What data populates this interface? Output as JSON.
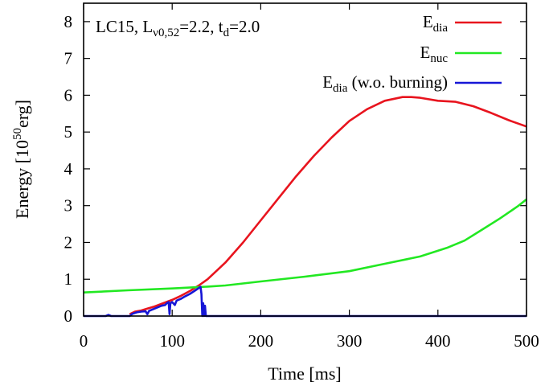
{
  "chart_data": {
    "type": "line",
    "title": "",
    "annotation": {
      "parts": [
        "LC15, L",
        "ν0,52",
        "=2.2, t",
        "d",
        "=2.0"
      ]
    },
    "xlabel": "Time [ms]",
    "ylabel": {
      "base": "Energy [10",
      "sup": "50",
      "unit": "erg]"
    },
    "xlim": [
      0,
      500
    ],
    "ylim": [
      0,
      8.5
    ],
    "xticks": [
      0,
      100,
      200,
      300,
      400,
      500
    ],
    "yticks": [
      0,
      1,
      2,
      3,
      4,
      5,
      6,
      7,
      8
    ],
    "legend_position": "top-right",
    "series": [
      {
        "name": "E_dia",
        "label_main": "E",
        "label_sub": "dia",
        "label_suffix": "",
        "color": "#e8141e",
        "points": [
          [
            52,
            0.05
          ],
          [
            58,
            0.12
          ],
          [
            65,
            0.15
          ],
          [
            72,
            0.2
          ],
          [
            80,
            0.26
          ],
          [
            90,
            0.35
          ],
          [
            100,
            0.44
          ],
          [
            110,
            0.55
          ],
          [
            120,
            0.68
          ],
          [
            130,
            0.83
          ],
          [
            140,
            1.0
          ],
          [
            160,
            1.45
          ],
          [
            180,
            2.0
          ],
          [
            200,
            2.6
          ],
          [
            220,
            3.2
          ],
          [
            240,
            3.8
          ],
          [
            260,
            4.35
          ],
          [
            280,
            4.85
          ],
          [
            300,
            5.3
          ],
          [
            320,
            5.62
          ],
          [
            340,
            5.85
          ],
          [
            360,
            5.95
          ],
          [
            370,
            5.95
          ],
          [
            380,
            5.93
          ],
          [
            400,
            5.85
          ],
          [
            420,
            5.82
          ],
          [
            440,
            5.7
          ],
          [
            460,
            5.52
          ],
          [
            480,
            5.32
          ],
          [
            500,
            5.15
          ]
        ]
      },
      {
        "name": "E_nuc",
        "label_main": "E",
        "label_sub": "nuc",
        "label_suffix": "",
        "color": "#22e822",
        "points": [
          [
            0,
            0.64
          ],
          [
            50,
            0.7
          ],
          [
            100,
            0.75
          ],
          [
            140,
            0.8
          ],
          [
            160,
            0.83
          ],
          [
            200,
            0.94
          ],
          [
            250,
            1.07
          ],
          [
            300,
            1.22
          ],
          [
            340,
            1.42
          ],
          [
            380,
            1.62
          ],
          [
            410,
            1.85
          ],
          [
            430,
            2.05
          ],
          [
            450,
            2.35
          ],
          [
            470,
            2.65
          ],
          [
            490,
            2.98
          ],
          [
            500,
            3.17
          ]
        ]
      },
      {
        "name": "E_dia (w.o. burning)",
        "label_main": "E",
        "label_sub": "dia",
        "label_suffix": " (w.o. burning)",
        "color": "#1616d6",
        "points": [
          [
            0,
            0
          ],
          [
            25,
            0
          ],
          [
            28,
            0.03
          ],
          [
            31,
            0
          ],
          [
            52,
            0
          ],
          [
            55,
            0.06
          ],
          [
            60,
            0.1
          ],
          [
            65,
            0.12
          ],
          [
            70,
            0.13
          ],
          [
            72,
            0.05
          ],
          [
            74,
            0.14
          ],
          [
            80,
            0.2
          ],
          [
            88,
            0.28
          ],
          [
            92,
            0.3
          ],
          [
            94,
            0.35
          ],
          [
            96,
            0.38
          ],
          [
            97,
            0.05
          ],
          [
            98,
            0.35
          ],
          [
            100,
            0.38
          ],
          [
            103,
            0.3
          ],
          [
            105,
            0.42
          ],
          [
            110,
            0.47
          ],
          [
            115,
            0.54
          ],
          [
            120,
            0.6
          ],
          [
            125,
            0.68
          ],
          [
            130,
            0.76
          ],
          [
            132,
            0.79
          ],
          [
            133,
            0.6
          ],
          [
            134,
            0.0
          ],
          [
            135,
            0.35
          ],
          [
            136,
            0.0
          ],
          [
            137,
            0.28
          ],
          [
            138,
            0.0
          ],
          [
            500,
            0
          ]
        ]
      }
    ]
  }
}
